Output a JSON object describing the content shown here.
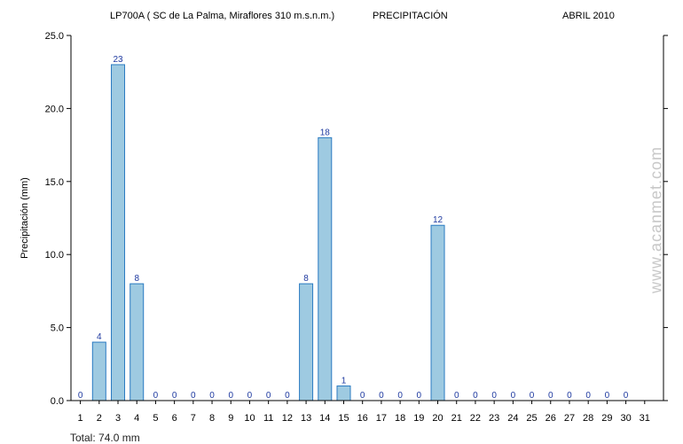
{
  "header": {
    "station": "LP700A ( SC de La Palma, Miraflores 310 m.s.n.m.)",
    "variable": "PRECIPITACIÓN",
    "period": "ABRIL 2010"
  },
  "footer": {
    "total": "Total: 74.0 mm"
  },
  "watermark": "www.acanmet.com",
  "colors": {
    "bar_fill": "#9ecae1",
    "bar_stroke": "#2b7bc2",
    "value_label": "#1f3aa0"
  },
  "chart_data": {
    "type": "bar",
    "title": "LP700A ( SC de La Palma, Miraflores 310 m.s.n.m.) PRECIPITACIÓN ABRIL 2010",
    "ylabel": "Precipitación (mm)",
    "xlabel": "",
    "ylim": [
      0,
      25
    ],
    "yticks": [
      "0.0",
      "5.0",
      "10.0",
      "15.0",
      "20.0",
      "25.0"
    ],
    "categories": [
      "1",
      "2",
      "3",
      "4",
      "5",
      "6",
      "7",
      "8",
      "9",
      "10",
      "11",
      "12",
      "13",
      "14",
      "15",
      "16",
      "17",
      "18",
      "19",
      "20",
      "21",
      "22",
      "23",
      "24",
      "25",
      "26",
      "27",
      "28",
      "29",
      "30",
      "31"
    ],
    "values": [
      0,
      4,
      23,
      8,
      0,
      0,
      0,
      0,
      0,
      0,
      0,
      0,
      8,
      18,
      1,
      0,
      0,
      0,
      0,
      12,
      0,
      0,
      0,
      0,
      0,
      0,
      0,
      0,
      0,
      0,
      null
    ],
    "value_labels": [
      "0",
      "4",
      "23",
      "8",
      "0",
      "0",
      "0",
      "0",
      "0",
      "0",
      "0",
      "0",
      "8",
      "18",
      "1",
      "0",
      "0",
      "0",
      "0",
      "12",
      "0",
      "0",
      "0",
      "0",
      "0",
      "0",
      "0",
      "0",
      "0",
      "0",
      ""
    ]
  }
}
